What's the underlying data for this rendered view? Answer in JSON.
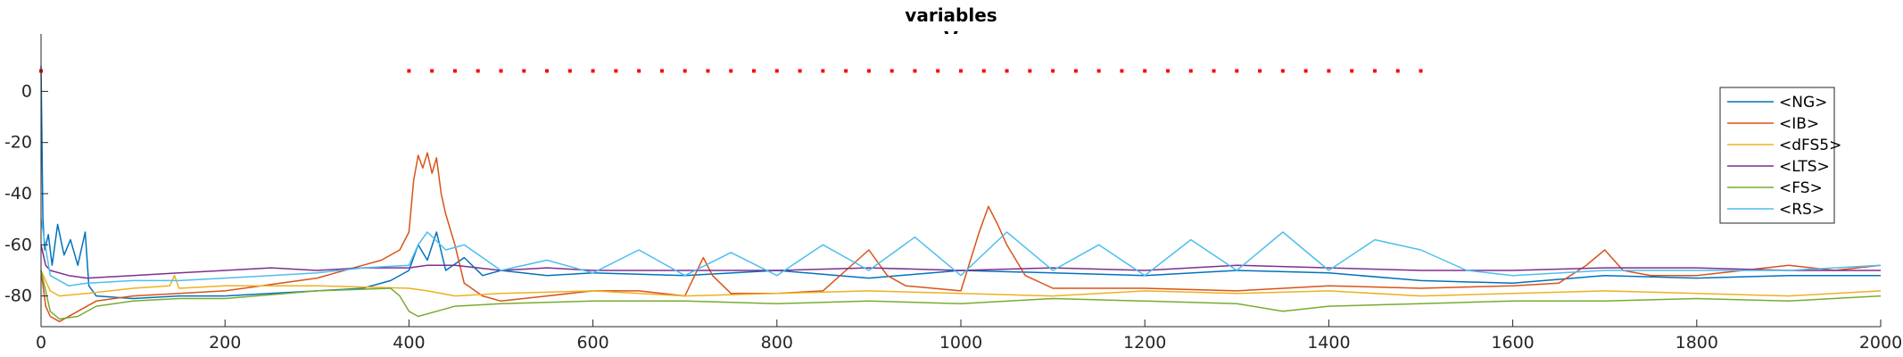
{
  "chart_data": {
    "type": "line",
    "title": "variables",
    "subtitle": "V",
    "xlabel": "",
    "ylabel": "",
    "xlim": [
      0,
      2000
    ],
    "ylim": [
      -92,
      12
    ],
    "xticks": [
      0,
      200,
      400,
      600,
      800,
      1000,
      1200,
      1400,
      1600,
      1800,
      2000
    ],
    "yticks": [
      0,
      -20,
      -40,
      -60,
      -80
    ],
    "grid": false,
    "legend_position": "top-right",
    "stimulus_markers": {
      "color": "#FF0000",
      "y": 8,
      "x": [
        0,
        400,
        425,
        450,
        475,
        500,
        525,
        550,
        575,
        600,
        625,
        650,
        675,
        700,
        725,
        750,
        775,
        800,
        825,
        850,
        875,
        900,
        925,
        950,
        975,
        1000,
        1025,
        1050,
        1075,
        1100,
        1125,
        1150,
        1175,
        1200,
        1225,
        1250,
        1275,
        1300,
        1325,
        1350,
        1375,
        1400,
        1425,
        1450,
        1475,
        1500
      ]
    },
    "series": [
      {
        "name": "<NG>",
        "color": "#0072BD",
        "x": [
          0,
          2,
          4,
          8,
          12,
          18,
          25,
          32,
          40,
          48,
          52,
          60,
          100,
          150,
          200,
          250,
          300,
          350,
          380,
          400,
          410,
          420,
          430,
          440,
          460,
          480,
          500,
          550,
          600,
          700,
          800,
          900,
          1000,
          1100,
          1200,
          1300,
          1400,
          1500,
          1600,
          1700,
          1800,
          1900,
          2000
        ],
        "y": [
          10,
          -50,
          -62,
          -56,
          -68,
          -52,
          -64,
          -58,
          -68,
          -55,
          -76,
          -80,
          -81,
          -80,
          -80,
          -79,
          -78,
          -77,
          -74,
          -70,
          -60,
          -66,
          -55,
          -70,
          -65,
          -72,
          -70,
          -72,
          -71,
          -72,
          -70,
          -73,
          -70,
          -71,
          -72,
          -70,
          -71,
          -74,
          -75,
          -72,
          -73,
          -72,
          -72
        ]
      },
      {
        "name": "<IB>",
        "color": "#D95319",
        "x": [
          0,
          5,
          10,
          20,
          40,
          60,
          100,
          150,
          200,
          300,
          350,
          370,
          390,
          400,
          405,
          410,
          415,
          420,
          425,
          430,
          435,
          440,
          450,
          460,
          480,
          500,
          550,
          600,
          650,
          700,
          720,
          730,
          750,
          800,
          850,
          900,
          920,
          940,
          1000,
          1020,
          1030,
          1040,
          1050,
          1070,
          1100,
          1200,
          1300,
          1400,
          1500,
          1600,
          1650,
          1680,
          1700,
          1720,
          1750,
          1800,
          1850,
          1900,
          1950,
          2000
        ],
        "y": [
          -70,
          -84,
          -88,
          -90,
          -86,
          -82,
          -80,
          -79,
          -78,
          -73,
          -68,
          -66,
          -62,
          -55,
          -35,
          -25,
          -30,
          -24,
          -32,
          -26,
          -40,
          -48,
          -60,
          -75,
          -80,
          -82,
          -80,
          -78,
          -78,
          -80,
          -65,
          -72,
          -79,
          -79,
          -78,
          -62,
          -72,
          -76,
          -78,
          -55,
          -45,
          -52,
          -60,
          -72,
          -77,
          -77,
          -78,
          -76,
          -77,
          -76,
          -75,
          -68,
          -62,
          -70,
          -72,
          -72,
          -70,
          -68,
          -70,
          -68
        ]
      },
      {
        "name": "<dFS5>",
        "color": "#EDB120",
        "x": [
          0,
          10,
          20,
          50,
          100,
          140,
          145,
          150,
          200,
          300,
          400,
          420,
          450,
          500,
          600,
          700,
          800,
          900,
          1000,
          1100,
          1200,
          1300,
          1400,
          1500,
          1600,
          1700,
          1800,
          1900,
          2000
        ],
        "y": [
          -70,
          -78,
          -80,
          -79,
          -77,
          -76,
          -72,
          -77,
          -76,
          -76,
          -77,
          -78,
          -80,
          -79,
          -78,
          -80,
          -79,
          -78,
          -79,
          -80,
          -78,
          -79,
          -78,
          -80,
          -79,
          -78,
          -79,
          -80,
          -78
        ]
      },
      {
        "name": "<LTS>",
        "color": "#7E2F8E",
        "x": [
          0,
          5,
          10,
          30,
          50,
          100,
          150,
          200,
          250,
          300,
          350,
          400,
          420,
          450,
          500,
          550,
          600,
          700,
          800,
          900,
          1000,
          1100,
          1200,
          1300,
          1400,
          1500,
          1600,
          1700,
          1800,
          1900,
          2000
        ],
        "y": [
          -60,
          -68,
          -70,
          -72,
          -73,
          -72,
          -71,
          -70,
          -69,
          -70,
          -69,
          -69,
          -68,
          -68,
          -70,
          -69,
          -70,
          -70,
          -70,
          -69,
          -70,
          -69,
          -70,
          -68,
          -69,
          -70,
          -70,
          -69,
          -69,
          -70,
          -70
        ]
      },
      {
        "name": "<FS>",
        "color": "#77AC30",
        "x": [
          0,
          10,
          20,
          40,
          60,
          100,
          150,
          200,
          300,
          380,
          390,
          400,
          410,
          430,
          450,
          500,
          600,
          700,
          800,
          900,
          1000,
          1100,
          1200,
          1300,
          1350,
          1400,
          1500,
          1600,
          1700,
          1800,
          1900,
          2000
        ],
        "y": [
          -70,
          -86,
          -89,
          -88,
          -84,
          -82,
          -81,
          -81,
          -78,
          -77,
          -80,
          -86,
          -88,
          -86,
          -84,
          -83,
          -82,
          -82,
          -83,
          -82,
          -83,
          -81,
          -82,
          -83,
          -86,
          -84,
          -83,
          -82,
          -82,
          -81,
          -82,
          -80
        ]
      },
      {
        "name": "<RS>",
        "color": "#4DBEEE",
        "x": [
          0,
          10,
          30,
          50,
          100,
          150,
          200,
          250,
          300,
          350,
          400,
          410,
          420,
          440,
          460,
          500,
          550,
          600,
          650,
          700,
          750,
          800,
          850,
          900,
          950,
          1000,
          1050,
          1100,
          1150,
          1200,
          1250,
          1300,
          1350,
          1400,
          1450,
          1500,
          1550,
          1600,
          1700,
          1800,
          1900,
          2000
        ],
        "y": [
          -50,
          -72,
          -76,
          -75,
          -74,
          -74,
          -73,
          -72,
          -71,
          -69,
          -68,
          -60,
          -55,
          -62,
          -60,
          -70,
          -66,
          -71,
          -62,
          -72,
          -63,
          -72,
          -60,
          -70,
          -57,
          -72,
          -55,
          -70,
          -60,
          -72,
          -58,
          -70,
          -55,
          -70,
          -58,
          -62,
          -70,
          -72,
          -70,
          -70,
          -70,
          -68
        ]
      }
    ]
  }
}
